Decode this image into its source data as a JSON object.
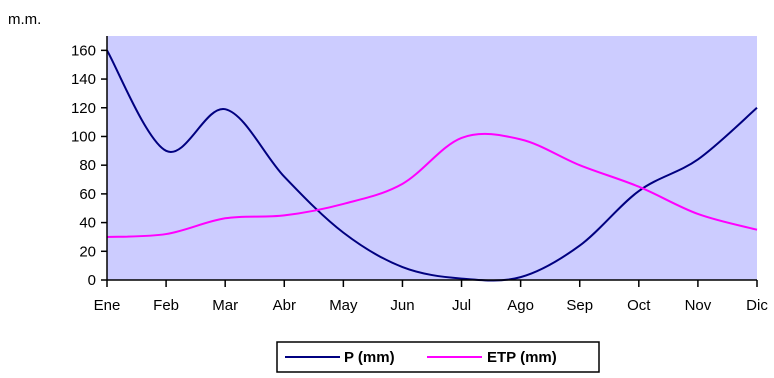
{
  "chart_data": {
    "type": "line",
    "title": "",
    "xlabel": "",
    "ylabel": "m.m.",
    "categories": [
      "Ene",
      "Feb",
      "Mar",
      "Abr",
      "May",
      "Jun",
      "Jul",
      "Ago",
      "Sep",
      "Oct",
      "Nov",
      "Dic"
    ],
    "ylim": [
      0,
      170
    ],
    "yticks": [
      0,
      20,
      40,
      60,
      80,
      100,
      120,
      140,
      160
    ],
    "grid": false,
    "plot_background": "#CCCCFF",
    "legend_position": "bottom-center",
    "series": [
      {
        "name": "P (mm)",
        "color": "#000080",
        "values": [
          160,
          90,
          119,
          72,
          33,
          9,
          1,
          2,
          24,
          62,
          84,
          120
        ]
      },
      {
        "name": "ETP (mm)",
        "color": "#FF00FF",
        "values": [
          30,
          32,
          43,
          45,
          53,
          67,
          99,
          98,
          80,
          65,
          46,
          35
        ]
      }
    ]
  }
}
